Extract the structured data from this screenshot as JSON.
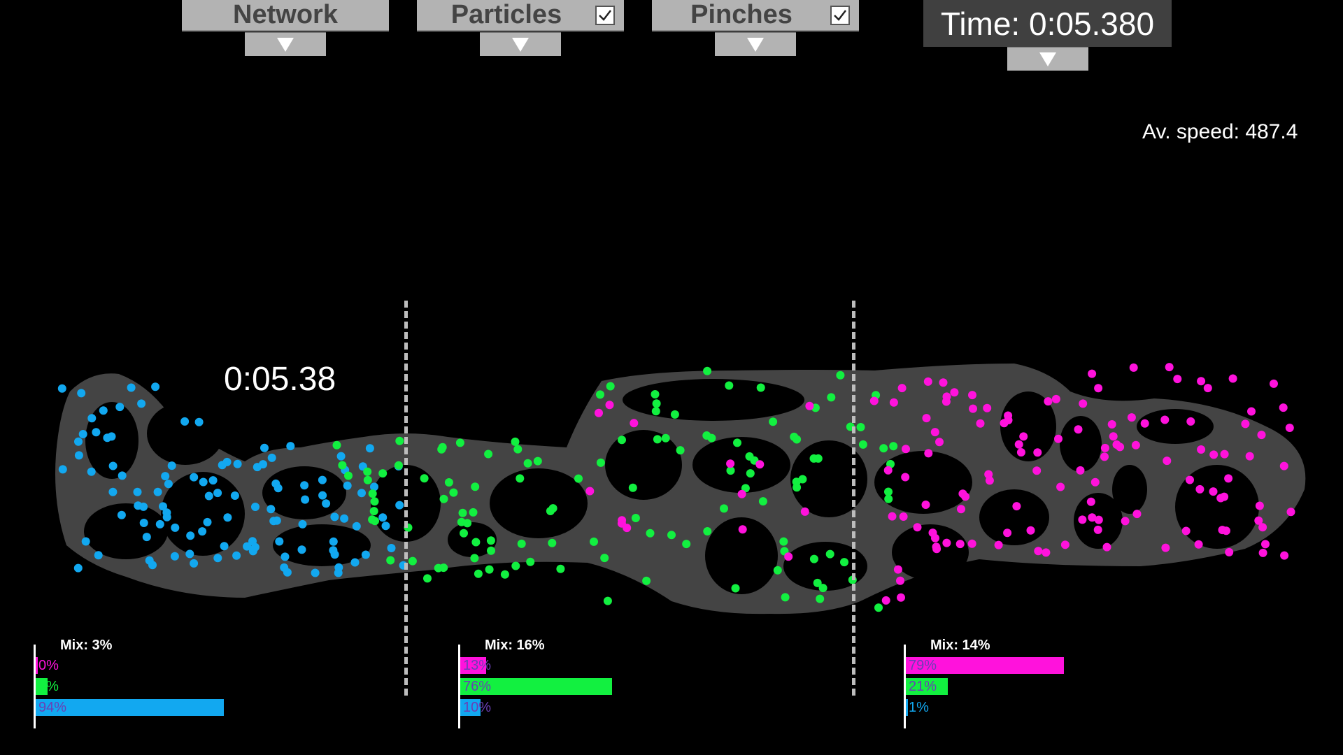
{
  "toolbar": {
    "network": {
      "label": "Network"
    },
    "particles": {
      "label": "Particles",
      "checked": true
    },
    "pinches": {
      "label": "Pinches",
      "checked": true
    }
  },
  "time_display": "Time: 0:05.380",
  "speed_display": "Av. speed: 487.4",
  "overlay_time": "0:05.38",
  "colors": {
    "magenta": "#ff12dc",
    "green": "#12f040",
    "blue": "#12a8f0",
    "network": "#444444"
  },
  "regions": [
    {
      "mix_label": "Mix: 3%",
      "bars": [
        {
          "label": "0%",
          "value": 0,
          "color": "magenta"
        },
        {
          "label": "6%",
          "value": 6,
          "color": "green"
        },
        {
          "label": "94%",
          "value": 94,
          "color": "blue"
        }
      ]
    },
    {
      "mix_label": "Mix: 16%",
      "bars": [
        {
          "label": "13%",
          "value": 13,
          "color": "magenta"
        },
        {
          "label": "76%",
          "value": 76,
          "color": "green"
        },
        {
          "label": "10%",
          "value": 10,
          "color": "blue"
        }
      ]
    },
    {
      "mix_label": "Mix: 14%",
      "bars": [
        {
          "label": "79%",
          "value": 79,
          "color": "magenta"
        },
        {
          "label": "21%",
          "value": 21,
          "color": "green"
        },
        {
          "label": "1%",
          "value": 1,
          "color": "blue"
        }
      ]
    }
  ]
}
